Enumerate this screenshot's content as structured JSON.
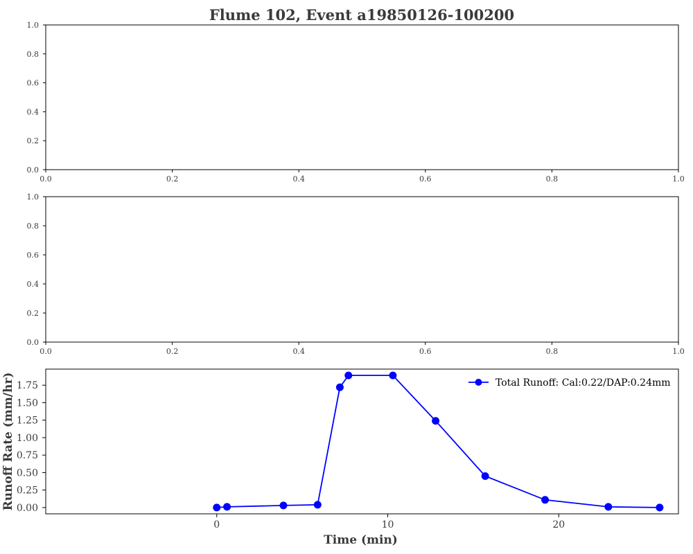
{
  "figure_title": "Flume 102, Event a19850126-100200",
  "chart_data": [
    {
      "type": "line",
      "panel": "top",
      "title": "",
      "xlabel": "",
      "ylabel": "",
      "xlim": [
        0.0,
        1.0
      ],
      "ylim": [
        0.0,
        1.0
      ],
      "x_ticks": [
        "0.0",
        "0.2",
        "0.4",
        "0.6",
        "0.8",
        "1.0"
      ],
      "y_ticks": [
        "0.0",
        "0.2",
        "0.4",
        "0.6",
        "0.8",
        "1.0"
      ],
      "series": []
    },
    {
      "type": "line",
      "panel": "middle",
      "title": "",
      "xlabel": "",
      "ylabel": "",
      "xlim": [
        0.0,
        1.0
      ],
      "ylim": [
        0.0,
        1.0
      ],
      "x_ticks": [
        "0.0",
        "0.2",
        "0.4",
        "0.6",
        "0.8",
        "1.0"
      ],
      "y_ticks": [
        "0.0",
        "0.2",
        "0.4",
        "0.6",
        "0.8",
        "1.0"
      ],
      "series": []
    },
    {
      "type": "line",
      "panel": "bottom",
      "title": "",
      "xlabel": "Time (min)",
      "ylabel": "Runoff Rate (mm/hr)",
      "xlim": [
        -10.0,
        27.0
      ],
      "ylim": [
        -0.09,
        1.98
      ],
      "x_ticks": [
        "0",
        "10",
        "20"
      ],
      "x_tick_values": [
        0,
        10,
        20
      ],
      "y_ticks": [
        "0.00",
        "0.25",
        "0.50",
        "0.75",
        "1.00",
        "1.25",
        "1.50",
        "1.75"
      ],
      "y_tick_values": [
        0,
        0.25,
        0.5,
        0.75,
        1.0,
        1.25,
        1.5,
        1.75
      ],
      "legend_position": "top-right",
      "series": [
        {
          "name": "Total Runoff: Cal:0.22/DAP:0.24mm",
          "color": "#0000ff",
          "marker": "circle",
          "x": [
            0.0,
            0.6,
            3.9,
            5.9,
            7.2,
            7.7,
            10.3,
            12.8,
            15.7,
            19.2,
            22.9,
            25.9
          ],
          "y": [
            0.0,
            0.01,
            0.03,
            0.04,
            1.72,
            1.89,
            1.89,
            1.24,
            0.45,
            0.11,
            0.01,
            0.0
          ]
        }
      ]
    }
  ]
}
